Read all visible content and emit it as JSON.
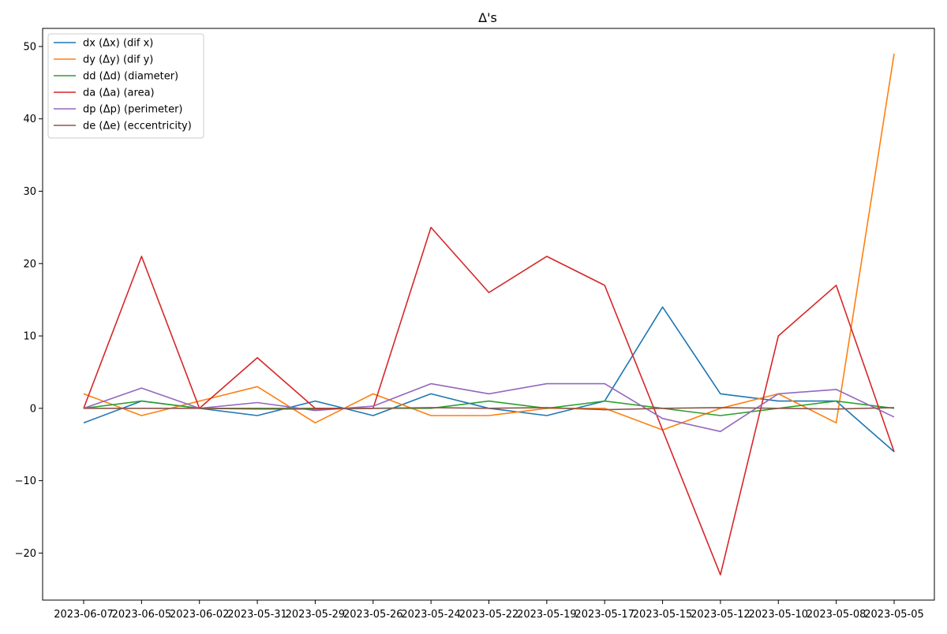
{
  "chart_data": {
    "type": "line",
    "title": "Δ's",
    "xlabel": "",
    "ylabel": "",
    "categories": [
      "2023-06-07",
      "2023-06-05",
      "2023-06-02",
      "2023-05-31",
      "2023-05-29",
      "2023-05-26",
      "2023-05-24",
      "2023-05-22",
      "2023-05-19",
      "2023-05-17",
      "2023-05-15",
      "2023-05-12",
      "2023-05-10",
      "2023-05-08",
      "2023-05-05"
    ],
    "ylim": [
      -26.5,
      52.5
    ],
    "yticks": [
      -20,
      -10,
      0,
      10,
      20,
      30,
      40,
      50
    ],
    "grid": false,
    "legend_position": "top-left",
    "series": [
      {
        "name": "dx (Δx) (dif x)",
        "color": "#1f77b4",
        "values": [
          -2,
          1,
          0,
          -1,
          1,
          -1,
          2,
          0,
          -1,
          1,
          14,
          2,
          1,
          1,
          -6
        ]
      },
      {
        "name": "dy (Δy) (dif y)",
        "color": "#ff7f0e",
        "values": [
          2,
          -1,
          1,
          3,
          -2,
          2,
          -1,
          -1,
          0,
          0,
          -3,
          0,
          2,
          -2,
          49
        ]
      },
      {
        "name": "dd (Δd) (diameter)",
        "color": "#2ca02c",
        "values": [
          0,
          1,
          0,
          0,
          0,
          0,
          0,
          1,
          0,
          1,
          0,
          -1,
          0,
          1,
          0
        ]
      },
      {
        "name": "da (Δa) (area)",
        "color": "#d62728",
        "values": [
          0,
          21,
          0,
          7,
          0,
          0,
          25,
          16,
          21,
          17,
          -3,
          -23,
          10,
          17,
          -6
        ]
      },
      {
        "name": "dp (Δp) (perimeter)",
        "color": "#9467bd",
        "values": [
          0,
          2.8,
          0,
          0.8,
          -0.3,
          0.3,
          3.4,
          2,
          3.4,
          3.4,
          -1.4,
          -3.2,
          2,
          2.6,
          -1.2
        ]
      },
      {
        "name": "de (Δe) (eccentricity)",
        "color": "#8c564b",
        "values": [
          0,
          0,
          0,
          -0.1,
          -0.1,
          0,
          0.1,
          0,
          0.1,
          -0.2,
          0,
          0.1,
          0,
          -0.1,
          0.1
        ]
      }
    ]
  }
}
